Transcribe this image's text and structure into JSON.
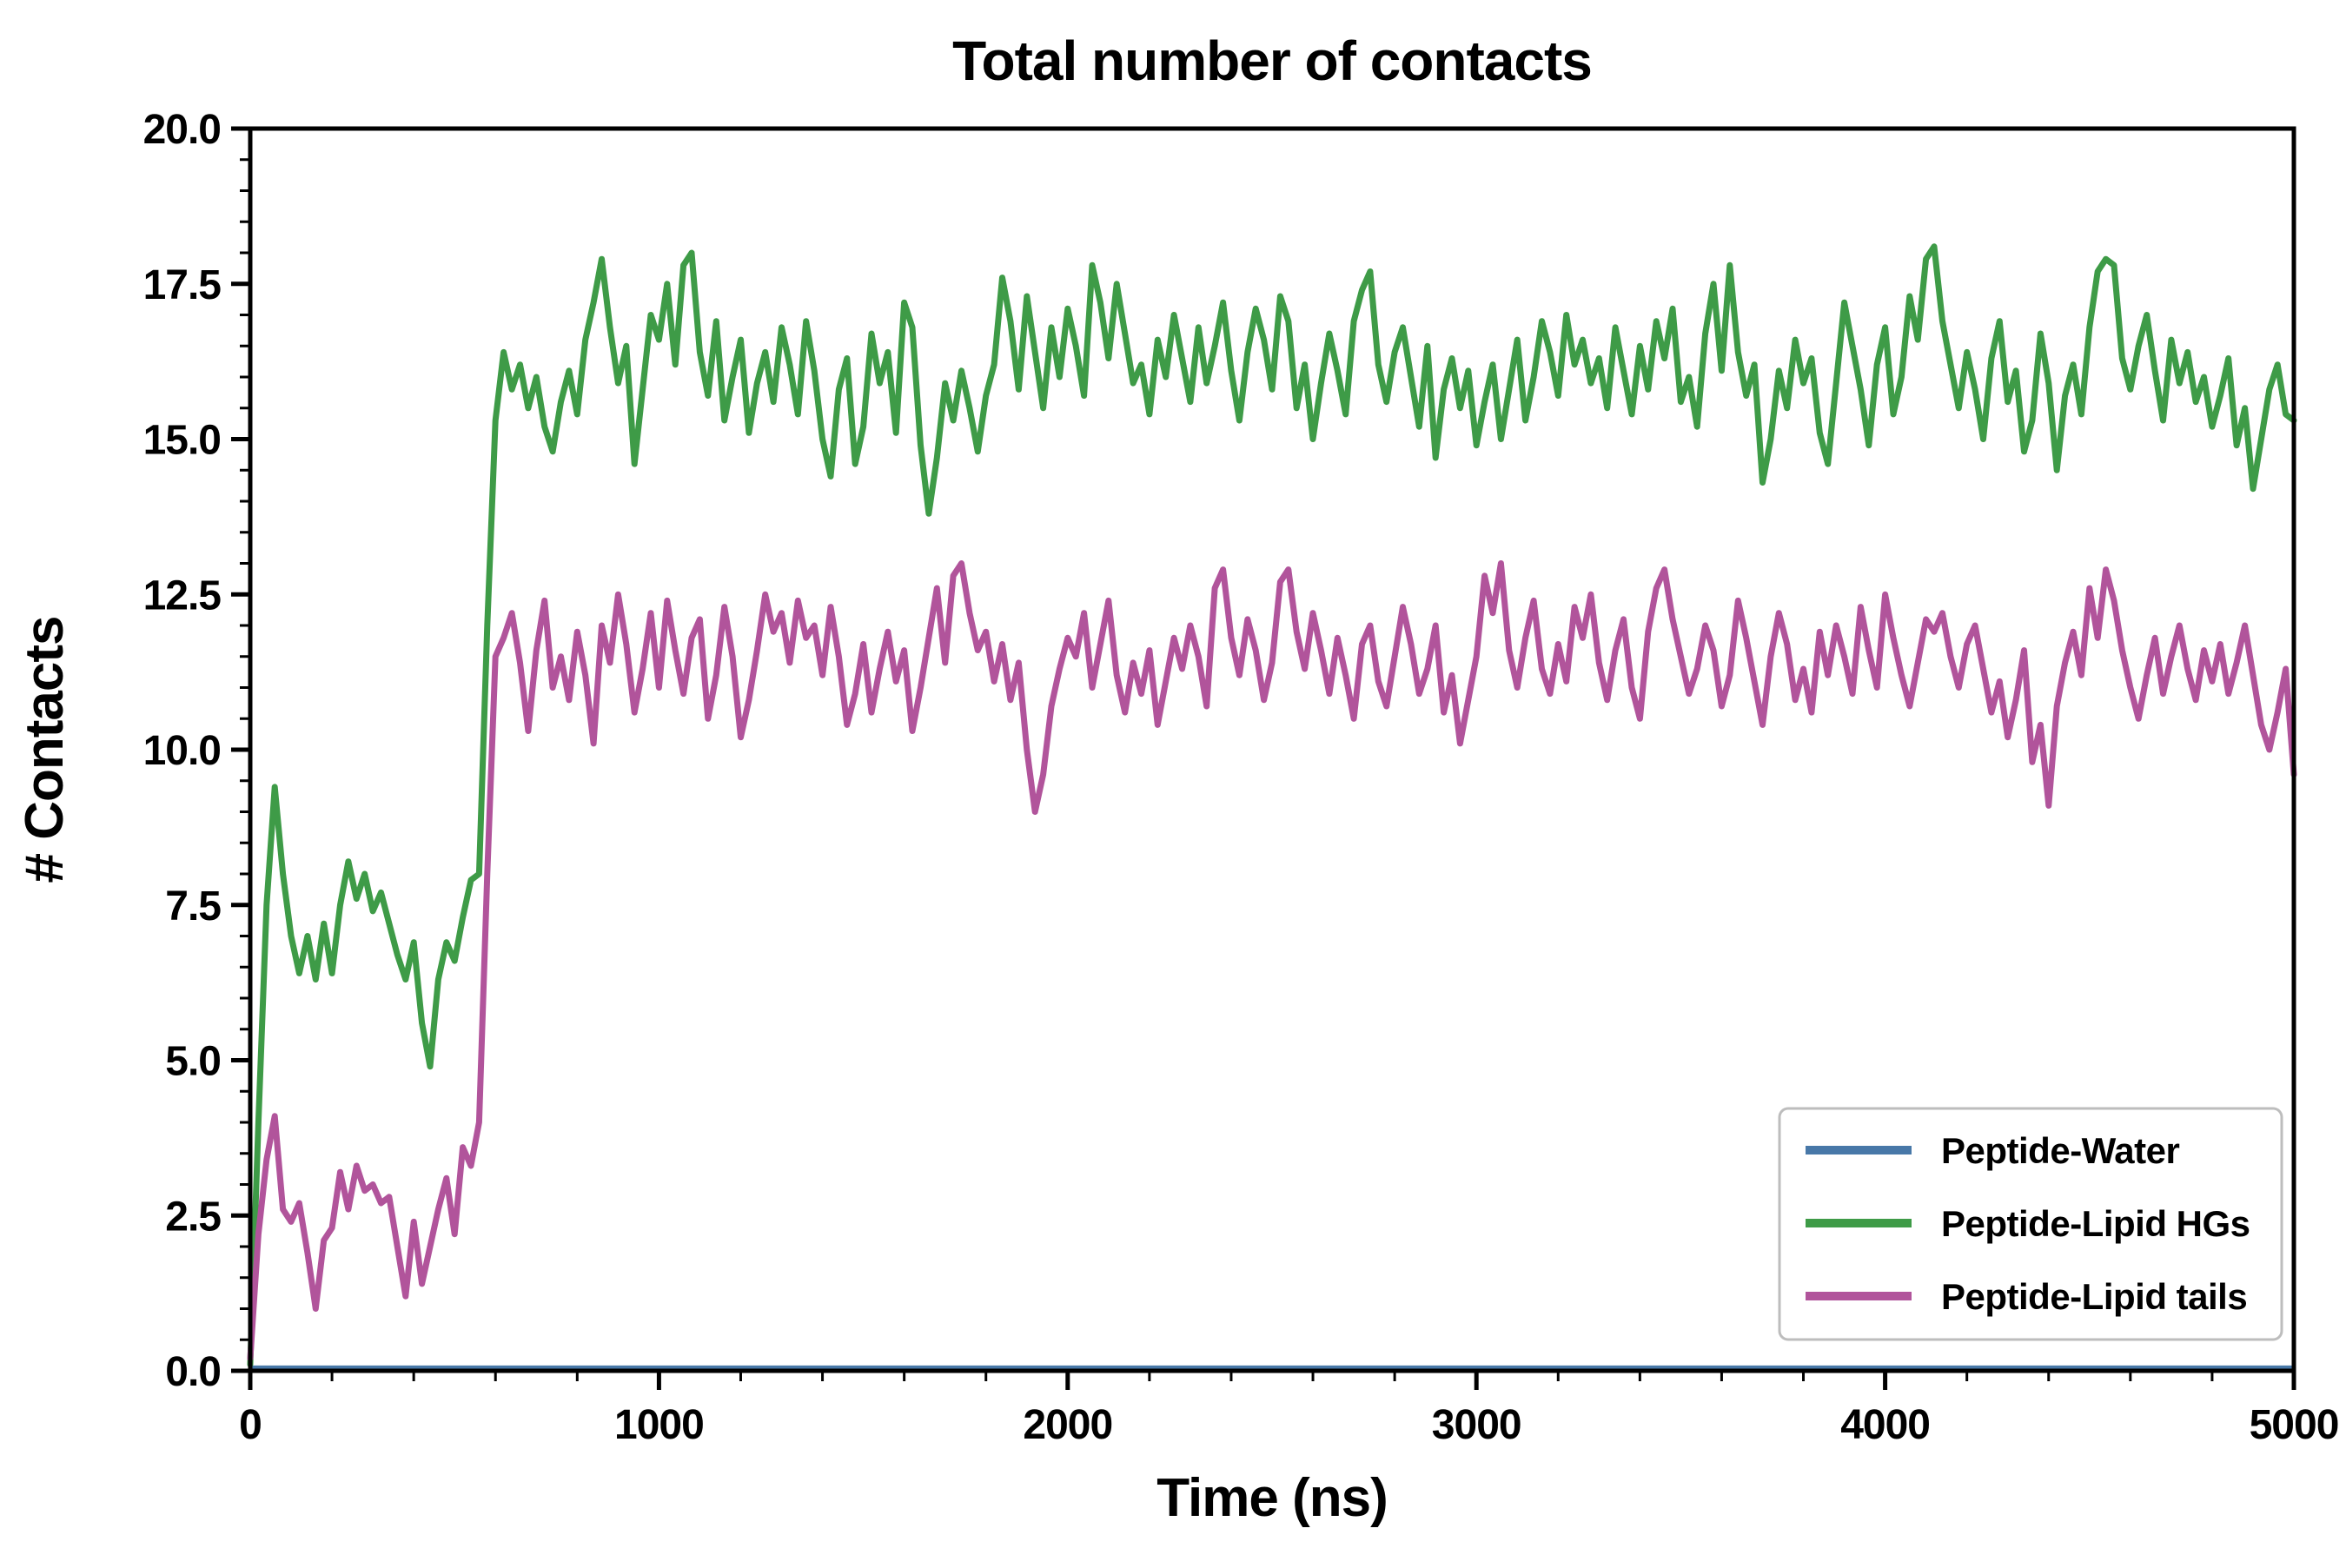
{
  "chart_data": {
    "type": "line",
    "title": "Total number of contacts",
    "xlabel": "Time (ns)",
    "ylabel": "# Contacts",
    "xlim": [
      0,
      5000
    ],
    "ylim": [
      0,
      20
    ],
    "x_ticks": [
      0,
      1000,
      2000,
      3000,
      4000,
      5000
    ],
    "y_ticks": [
      0.0,
      2.5,
      5.0,
      7.5,
      10.0,
      12.5,
      15.0,
      17.5,
      20.0
    ],
    "x_minor_step": 200,
    "y_minor_step": 0.5,
    "grid": false,
    "legend_position": "lower right",
    "x_start": 0,
    "x_step": 20,
    "series": [
      {
        "name": "Peptide-Water",
        "color": "#4878a8",
        "constant_value": 0.05
      },
      {
        "name": "Peptide-Lipid HGs",
        "color": "#3e9b47",
        "values": [
          0.1,
          4.0,
          7.5,
          9.4,
          8.0,
          7.0,
          6.4,
          7.0,
          6.3,
          7.2,
          6.4,
          7.5,
          8.2,
          7.6,
          8.0,
          7.4,
          7.7,
          7.2,
          6.7,
          6.3,
          6.9,
          5.6,
          4.9,
          6.3,
          6.9,
          6.6,
          7.3,
          7.9,
          8.0,
          12.0,
          15.3,
          16.4,
          15.8,
          16.2,
          15.5,
          16.0,
          15.2,
          14.8,
          15.6,
          16.1,
          15.4,
          16.6,
          17.2,
          17.9,
          16.8,
          15.9,
          16.5,
          14.6,
          15.8,
          17.0,
          16.6,
          17.5,
          16.2,
          17.8,
          18.0,
          16.4,
          15.7,
          16.9,
          15.3,
          16.0,
          16.6,
          15.1,
          15.9,
          16.4,
          15.6,
          16.8,
          16.2,
          15.4,
          16.9,
          16.1,
          15.0,
          14.4,
          15.8,
          16.3,
          14.6,
          15.2,
          16.7,
          15.9,
          16.4,
          15.1,
          17.2,
          16.8,
          14.9,
          13.8,
          14.7,
          15.9,
          15.3,
          16.1,
          15.5,
          14.8,
          15.7,
          16.2,
          17.6,
          16.9,
          15.8,
          17.3,
          16.4,
          15.5,
          16.8,
          16.0,
          17.1,
          16.5,
          15.7,
          17.8,
          17.2,
          16.3,
          17.5,
          16.7,
          15.9,
          16.2,
          15.4,
          16.6,
          16.0,
          17.0,
          16.3,
          15.6,
          16.8,
          15.9,
          16.5,
          17.2,
          16.1,
          15.3,
          16.4,
          17.1,
          16.6,
          15.8,
          17.3,
          16.9,
          15.5,
          16.2,
          15.0,
          15.9,
          16.7,
          16.1,
          15.4,
          16.9,
          17.4,
          17.7,
          16.2,
          15.6,
          16.4,
          16.8,
          16.0,
          15.2,
          16.5,
          14.7,
          15.8,
          16.3,
          15.5,
          16.1,
          14.9,
          15.6,
          16.2,
          15.0,
          15.8,
          16.6,
          15.3,
          16.0,
          16.9,
          16.4,
          15.7,
          17.0,
          16.2,
          16.6,
          15.9,
          16.3,
          15.5,
          16.8,
          16.1,
          15.4,
          16.5,
          15.8,
          16.9,
          16.3,
          17.1,
          15.6,
          16.0,
          15.2,
          16.7,
          17.5,
          16.1,
          17.8,
          16.4,
          15.7,
          16.2,
          14.3,
          15.0,
          16.1,
          15.5,
          16.6,
          15.9,
          16.3,
          15.1,
          14.6,
          15.9,
          17.2,
          16.5,
          15.8,
          14.9,
          16.2,
          16.8,
          15.4,
          16.0,
          17.3,
          16.6,
          17.9,
          18.1,
          16.9,
          16.2,
          15.5,
          16.4,
          15.8,
          15.0,
          16.3,
          16.9,
          15.6,
          16.1,
          14.8,
          15.3,
          16.7,
          15.9,
          14.5,
          15.7,
          16.2,
          15.4,
          16.8,
          17.7,
          17.9,
          17.8,
          16.3,
          15.8,
          16.5,
          17.0,
          16.1,
          15.3,
          16.6,
          15.9,
          16.4,
          15.6,
          16.0,
          15.2,
          15.7,
          16.3,
          14.9,
          15.5,
          14.2,
          15.0,
          15.8,
          16.2,
          15.4,
          15.3
        ]
      },
      {
        "name": "Peptide-Lipid tails",
        "color": "#b1549b",
        "values": [
          0.2,
          2.2,
          3.4,
          4.1,
          2.6,
          2.4,
          2.7,
          1.9,
          1.0,
          2.1,
          2.3,
          3.2,
          2.6,
          3.3,
          2.9,
          3.0,
          2.7,
          2.8,
          2.0,
          1.2,
          2.4,
          1.4,
          2.0,
          2.6,
          3.1,
          2.2,
          3.6,
          3.3,
          4.0,
          8.0,
          11.5,
          11.8,
          12.2,
          11.4,
          10.3,
          11.6,
          12.4,
          11.0,
          11.5,
          10.8,
          11.9,
          11.2,
          10.1,
          12.0,
          11.4,
          12.5,
          11.7,
          10.6,
          11.3,
          12.2,
          11.0,
          12.4,
          11.6,
          10.9,
          11.8,
          12.1,
          10.5,
          11.2,
          12.3,
          11.5,
          10.2,
          10.8,
          11.6,
          12.5,
          11.9,
          12.2,
          11.4,
          12.4,
          11.8,
          12.0,
          11.2,
          12.3,
          11.5,
          10.4,
          10.9,
          11.7,
          10.6,
          11.3,
          11.9,
          11.1,
          11.6,
          10.3,
          11.0,
          11.8,
          12.6,
          11.4,
          12.8,
          13.0,
          12.2,
          11.6,
          11.9,
          11.1,
          11.7,
          10.8,
          11.4,
          10.0,
          9.0,
          9.6,
          10.7,
          11.3,
          11.8,
          11.5,
          12.2,
          11.0,
          11.7,
          12.4,
          11.2,
          10.6,
          11.4,
          10.9,
          11.6,
          10.4,
          11.1,
          11.8,
          11.3,
          12.0,
          11.5,
          10.7,
          12.6,
          12.9,
          11.8,
          11.2,
          12.1,
          11.6,
          10.8,
          11.4,
          12.7,
          12.9,
          11.9,
          11.3,
          12.2,
          11.6,
          10.9,
          11.8,
          11.2,
          10.5,
          11.7,
          12.0,
          11.1,
          10.7,
          11.5,
          12.3,
          11.7,
          10.9,
          11.3,
          12.0,
          10.6,
          11.2,
          10.1,
          10.8,
          11.5,
          12.8,
          12.2,
          13.0,
          11.6,
          11.0,
          11.8,
          12.4,
          11.3,
          10.9,
          11.7,
          11.1,
          12.3,
          11.8,
          12.5,
          11.4,
          10.8,
          11.6,
          12.1,
          11.0,
          10.5,
          11.9,
          12.6,
          12.9,
          12.1,
          11.5,
          10.9,
          11.3,
          12.0,
          11.6,
          10.7,
          11.2,
          12.4,
          11.8,
          11.1,
          10.4,
          11.5,
          12.2,
          11.7,
          10.8,
          11.3,
          10.6,
          11.9,
          11.2,
          12.0,
          11.5,
          10.9,
          12.3,
          11.6,
          11.0,
          12.5,
          11.8,
          11.2,
          10.7,
          11.4,
          12.1,
          11.9,
          12.2,
          11.5,
          11.0,
          11.7,
          12.0,
          11.3,
          10.6,
          11.1,
          10.2,
          10.8,
          11.6,
          9.8,
          10.4,
          9.1,
          10.7,
          11.4,
          11.9,
          11.2,
          12.6,
          11.8,
          12.9,
          12.4,
          11.6,
          11.0,
          10.5,
          11.2,
          11.8,
          10.9,
          11.5,
          12.0,
          11.3,
          10.8,
          11.6,
          11.1,
          11.7,
          10.9,
          11.4,
          12.0,
          11.2,
          10.4,
          10.0,
          10.6,
          11.3,
          9.6
        ]
      }
    ]
  }
}
